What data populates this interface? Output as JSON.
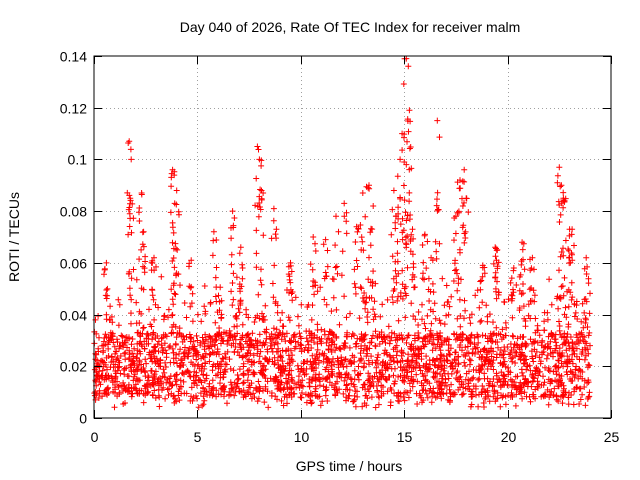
{
  "chart_data": {
    "type": "scatter",
    "title": "Day 040 of 2026, Rate Of TEC Index for receiver malm",
    "xlabel": "GPS time / hours",
    "ylabel": "ROTI / TECUs",
    "xlim": [
      0,
      25
    ],
    "ylim": [
      0,
      0.14
    ],
    "xticks": [
      0,
      5,
      10,
      15,
      20,
      25
    ],
    "yticks": [
      0,
      0.02,
      0.04,
      0.06,
      0.08,
      0.1,
      0.12,
      0.14
    ],
    "xtick_labels": [
      "0",
      "5",
      "10",
      "15",
      "20",
      "25"
    ],
    "ytick_labels": [
      "0",
      "0.02",
      "0.04",
      "0.06",
      "0.08",
      "0.1",
      "0.12",
      "0.14"
    ],
    "grid": true,
    "marker": "plus",
    "color": "#ff0000",
    "data_range": {
      "x_min": 0,
      "x_max": 24,
      "y_typical_min": 0.005,
      "y_typical_max": 0.045
    },
    "peaks": [
      {
        "x": 1.7,
        "y": 0.107
      },
      {
        "x": 1.8,
        "y": 0.1
      },
      {
        "x": 1.75,
        "y": 0.085
      },
      {
        "x": 2.3,
        "y": 0.087
      },
      {
        "x": 2.4,
        "y": 0.072
      },
      {
        "x": 3.8,
        "y": 0.096
      },
      {
        "x": 3.9,
        "y": 0.083
      },
      {
        "x": 4.0,
        "y": 0.088
      },
      {
        "x": 5.8,
        "y": 0.072
      },
      {
        "x": 6.7,
        "y": 0.08
      },
      {
        "x": 7.9,
        "y": 0.105
      },
      {
        "x": 8.0,
        "y": 0.1
      },
      {
        "x": 8.1,
        "y": 0.088
      },
      {
        "x": 8.7,
        "y": 0.081
      },
      {
        "x": 9.5,
        "y": 0.06
      },
      {
        "x": 11.7,
        "y": 0.078
      },
      {
        "x": 12.1,
        "y": 0.083
      },
      {
        "x": 13.0,
        "y": 0.087
      },
      {
        "x": 13.3,
        "y": 0.09
      },
      {
        "x": 13.5,
        "y": 0.082
      },
      {
        "x": 14.5,
        "y": 0.088
      },
      {
        "x": 14.6,
        "y": 0.078
      },
      {
        "x": 14.9,
        "y": 0.11
      },
      {
        "x": 14.8,
        "y": 0.1
      },
      {
        "x": 15.0,
        "y": 0.099
      },
      {
        "x": 15.1,
        "y": 0.139
      },
      {
        "x": 15.2,
        "y": 0.136
      },
      {
        "x": 15.25,
        "y": 0.119
      },
      {
        "x": 15.4,
        "y": 0.073
      },
      {
        "x": 16.0,
        "y": 0.071
      },
      {
        "x": 16.6,
        "y": 0.115
      },
      {
        "x": 17.7,
        "y": 0.092
      },
      {
        "x": 17.9,
        "y": 0.096
      },
      {
        "x": 18.0,
        "y": 0.085
      },
      {
        "x": 17.5,
        "y": 0.078
      },
      {
        "x": 19.4,
        "y": 0.066
      },
      {
        "x": 19.5,
        "y": 0.065
      },
      {
        "x": 20.7,
        "y": 0.068
      },
      {
        "x": 22.5,
        "y": 0.097
      },
      {
        "x": 22.6,
        "y": 0.09
      },
      {
        "x": 22.7,
        "y": 0.085
      },
      {
        "x": 23.0,
        "y": 0.073
      },
      {
        "x": 23.1,
        "y": 0.071
      },
      {
        "x": 21.2,
        "y": 0.062
      },
      {
        "x": 0.6,
        "y": 0.06
      },
      {
        "x": 4.7,
        "y": 0.061
      },
      {
        "x": 10.6,
        "y": 0.07
      },
      {
        "x": 11.2,
        "y": 0.069
      },
      {
        "x": 12.7,
        "y": 0.074
      },
      {
        "x": 16.3,
        "y": 0.062
      },
      {
        "x": 18.8,
        "y": 0.059
      },
      {
        "x": 20.3,
        "y": 0.058
      },
      {
        "x": 23.8,
        "y": 0.062
      },
      {
        "x": 2.9,
        "y": 0.062
      },
      {
        "x": 7.1,
        "y": 0.066
      }
    ]
  }
}
